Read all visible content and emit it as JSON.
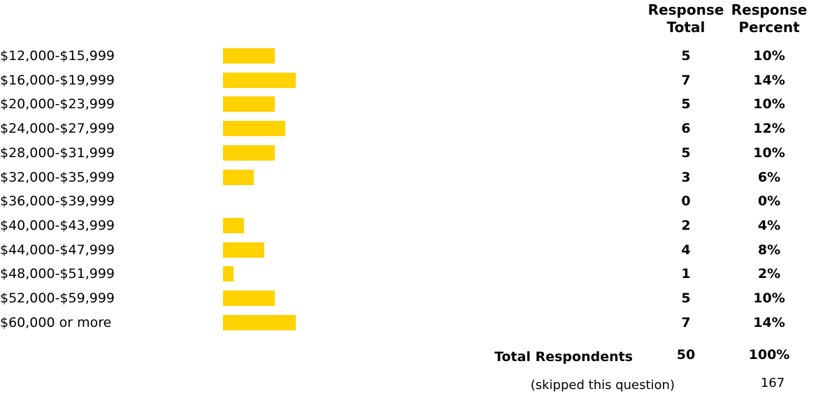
{
  "headers": {
    "total_line1": "Response",
    "total_line2": "Total",
    "percent_line1": "Response",
    "percent_line2": "Percent"
  },
  "chart_data": {
    "type": "bar",
    "orientation": "horizontal",
    "categories": [
      "$12,000-$15,999",
      "$16,000-$19,999",
      "$20,000-$23,999",
      "$24,000-$27,999",
      "$28,000-$31,999",
      "$32,000-$35,999",
      "$36,000-$39,999",
      "$40,000-$43,999",
      "$44,000-$47,999",
      "$48,000-$51,999",
      "$52,000-$59,999",
      "$60,000 or more"
    ],
    "totals": [
      "5",
      "7",
      "5",
      "6",
      "5",
      "3",
      "0",
      "2",
      "4",
      "1",
      "5",
      "7"
    ],
    "percents": [
      "10%",
      "14%",
      "10%",
      "12%",
      "10%",
      "6%",
      "0%",
      "4%",
      "8%",
      "2%",
      "10%",
      "14%"
    ],
    "values": [
      10,
      14,
      10,
      12,
      10,
      6,
      0,
      4,
      8,
      2,
      10,
      14
    ],
    "bar_color": "#FFD200"
  },
  "summary": {
    "total_label": "Total Respondents",
    "total_count": "50",
    "total_percent": "100%",
    "skipped_label": "(skipped this question)",
    "skipped_count": "167"
  }
}
